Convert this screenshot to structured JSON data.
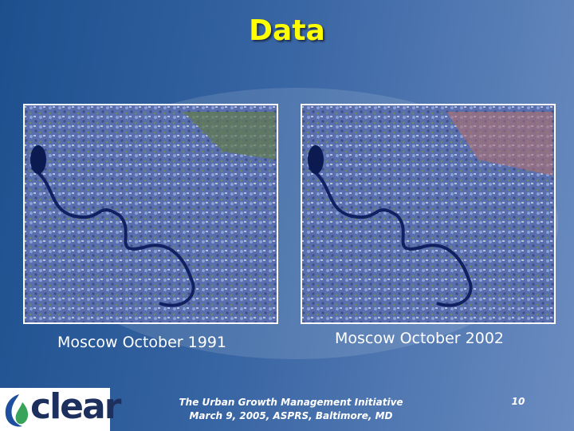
{
  "slide": {
    "title": "Data",
    "images": [
      {
        "caption": "Moscow October 1991"
      },
      {
        "caption": "Moscow October 2002"
      }
    ],
    "footer": {
      "lines": [
        "The Urban Growth Management Initiative",
        "March 9, 2005, ASPRS, Baltimore, MD"
      ],
      "page_number": "10"
    },
    "logo": {
      "text": "clear"
    }
  }
}
